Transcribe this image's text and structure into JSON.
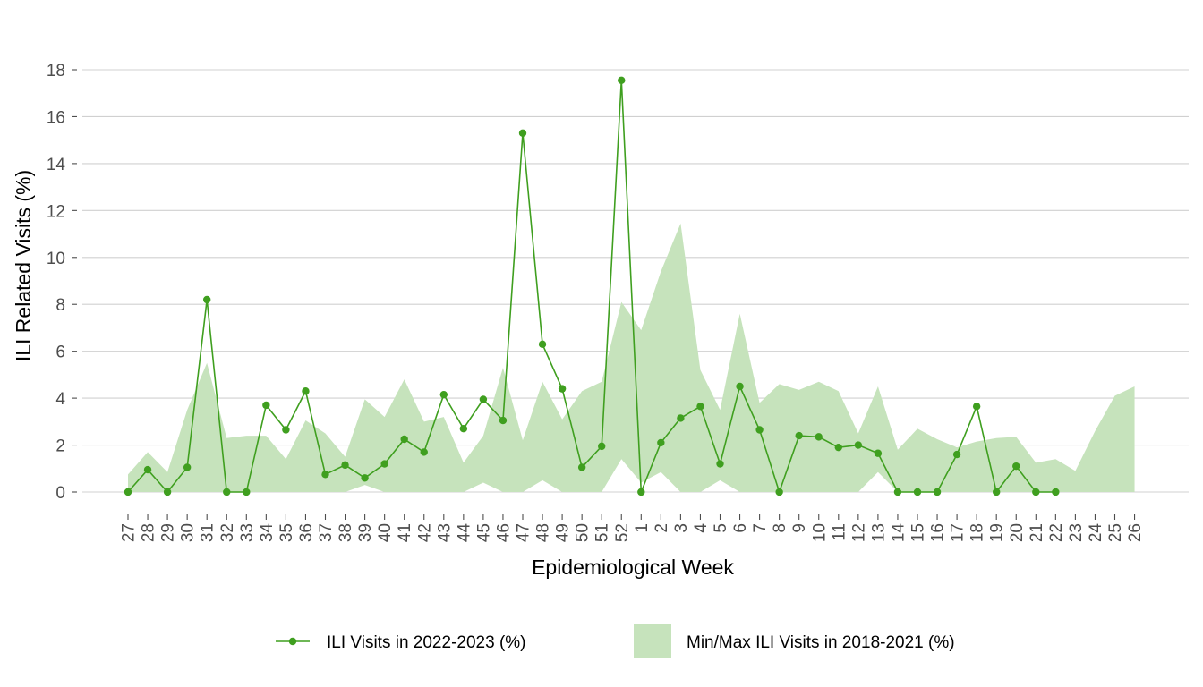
{
  "chart_data": {
    "type": "line",
    "xlabel": "Epidemiological Week",
    "ylabel": "ILI Related Visits (%)",
    "ylim": [
      0,
      18
    ],
    "yticks": [
      0,
      2,
      4,
      6,
      8,
      10,
      12,
      14,
      16,
      18
    ],
    "grid": "horizontal",
    "legend_position": "bottom",
    "categories": [
      "27",
      "28",
      "29",
      "30",
      "31",
      "32",
      "33",
      "34",
      "35",
      "36",
      "37",
      "38",
      "39",
      "40",
      "41",
      "42",
      "43",
      "44",
      "45",
      "46",
      "47",
      "48",
      "49",
      "50",
      "51",
      "52",
      "1",
      "2",
      "3",
      "4",
      "5",
      "6",
      "7",
      "8",
      "9",
      "10",
      "11",
      "12",
      "13",
      "14",
      "15",
      "16",
      "17",
      "18",
      "19",
      "20",
      "21",
      "22",
      "23",
      "24",
      "25",
      "26"
    ],
    "series": [
      {
        "name": "ILI Visits in 2022-2023 (%)",
        "kind": "line-points",
        "color": "#3f9f1f",
        "values": [
          0.0,
          0.95,
          0.0,
          1.05,
          8.2,
          0.0,
          0.0,
          3.7,
          2.65,
          4.3,
          0.75,
          1.15,
          0.6,
          1.2,
          2.25,
          1.7,
          4.15,
          2.7,
          3.95,
          3.05,
          15.3,
          6.3,
          4.4,
          1.05,
          1.95,
          17.55,
          0.0,
          2.1,
          3.15,
          3.65,
          1.2,
          4.5,
          2.65,
          0.0,
          2.4,
          2.35,
          1.9,
          2.0,
          1.65,
          0.0,
          0.0,
          0.0,
          1.6,
          3.65,
          0.0,
          1.1,
          0.0,
          0.0,
          null,
          null,
          null,
          null
        ]
      },
      {
        "name": "Min/Max ILI Visits in 2018-2021 (%)",
        "kind": "band",
        "color": "#c6e3bc",
        "min": [
          0,
          0,
          0,
          0,
          0,
          0,
          0,
          0,
          0,
          0,
          0,
          0,
          0.3,
          0,
          0,
          0,
          0,
          0,
          0.4,
          0,
          0,
          0.5,
          0,
          0,
          0,
          1.4,
          0.4,
          0.85,
          0,
          0,
          0.5,
          0,
          0,
          0,
          0,
          0,
          0,
          0,
          0.85,
          0,
          0,
          0,
          0,
          0,
          0,
          0,
          0,
          0,
          0,
          0,
          0,
          0
        ],
        "max": [
          0.75,
          1.7,
          0.85,
          3.5,
          5.5,
          2.3,
          2.4,
          2.4,
          1.4,
          3.05,
          2.5,
          1.5,
          3.95,
          3.2,
          4.8,
          3.0,
          3.2,
          1.25,
          2.4,
          5.3,
          2.2,
          4.7,
          3.1,
          4.3,
          4.7,
          8.1,
          6.9,
          9.4,
          11.45,
          5.2,
          3.5,
          7.6,
          3.8,
          4.6,
          4.35,
          4.7,
          4.3,
          2.5,
          4.5,
          1.8,
          2.7,
          2.25,
          1.9,
          2.15,
          2.3,
          2.35,
          1.25,
          1.4,
          0.9,
          2.6,
          4.1,
          4.5
        ]
      }
    ]
  }
}
